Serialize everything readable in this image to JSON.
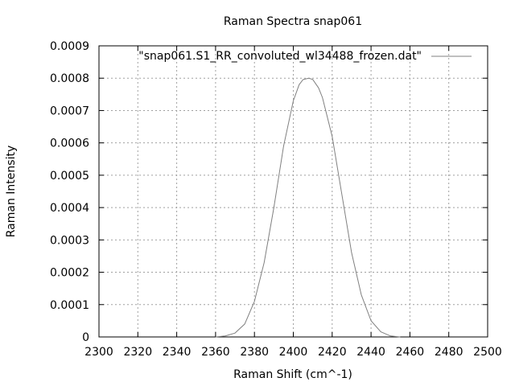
{
  "chart_data": {
    "type": "line",
    "title": "Raman Spectra snap061",
    "xlabel": "Raman Shift (cm^-1)",
    "ylabel": "Raman Intensity",
    "xlim": [
      2300,
      2500
    ],
    "ylim": [
      0,
      0.0009
    ],
    "x_ticks": [
      "2300",
      "2320",
      "2340",
      "2360",
      "2380",
      "2400",
      "2420",
      "2440",
      "2460",
      "2480",
      "2500"
    ],
    "y_ticks": [
      "0",
      "0.0001",
      "0.0002",
      "0.0003",
      "0.0004",
      "0.0005",
      "0.0006",
      "0.0007",
      "0.0008",
      "0.0009"
    ],
    "grid": true,
    "legend_position": "top-right",
    "series": [
      {
        "name": "\"snap061.S1_RR_convoluted_wl34488_frozen.dat\"",
        "color": "#808080",
        "x": [
          2360,
          2365,
          2370,
          2375,
          2380,
          2385,
          2390,
          2395,
          2400,
          2403,
          2405,
          2408,
          2410,
          2413,
          2415,
          2420,
          2425,
          2430,
          2435,
          2440,
          2445,
          2450,
          2455
        ],
        "y": [
          0.0,
          3e-06,
          1.2e-05,
          4e-05,
          0.00011,
          0.00023,
          0.0004,
          0.00059,
          0.00073,
          0.00078,
          0.0007956,
          0.0008,
          0.000796,
          0.00077,
          0.00074,
          0.00062,
          0.00044,
          0.00026,
          0.00013,
          5e-05,
          1.6e-05,
          3e-06,
          0.0
        ]
      }
    ]
  }
}
